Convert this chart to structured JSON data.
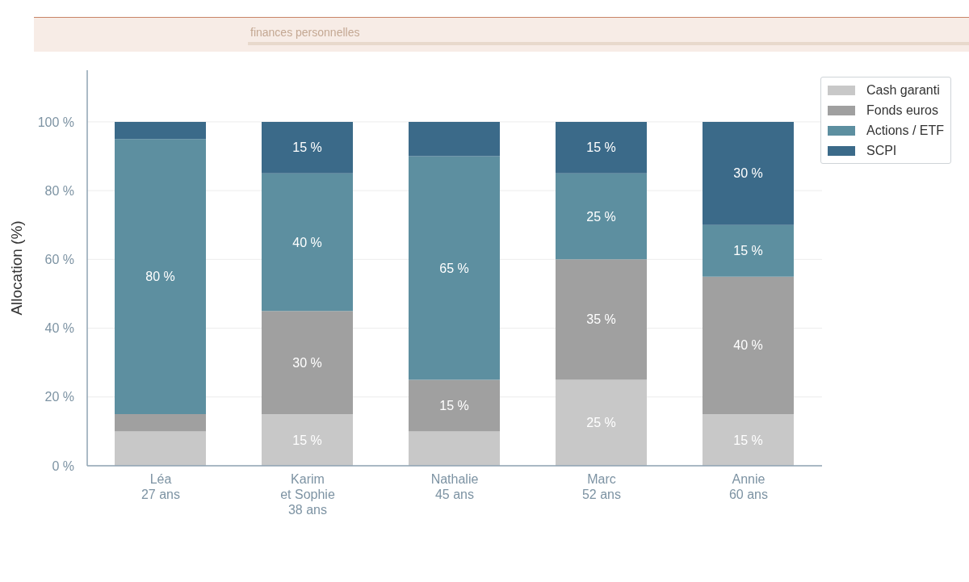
{
  "chart_data": {
    "type": "bar",
    "subtitle": "finances personnelles",
    "ylabel": "Allocation (%)",
    "categories": [
      "Léa\n27 ans",
      "Karim\net Sophie\n38 ans",
      "Nathalie\n45 ans",
      "Marc\n52 ans",
      "Annie\n60 ans"
    ],
    "stacked": true,
    "series": [
      {
        "name": "Cash garanti",
        "color": "#c8c8c8",
        "values": [
          10,
          15,
          10,
          25,
          15
        ],
        "value_labels": [
          null,
          "15 %",
          null,
          "25 %",
          "15 %"
        ]
      },
      {
        "name": "Fonds euros",
        "color": "#a0a0a0",
        "values": [
          5,
          30,
          15,
          35,
          40
        ],
        "value_labels": [
          null,
          "30 %",
          "15 %",
          "35 %",
          "40 %"
        ]
      },
      {
        "name": "Actions / ETF",
        "color": "#5d8fa0",
        "values": [
          80,
          40,
          65,
          25,
          15
        ],
        "value_labels": [
          "80 %",
          "40 %",
          "65 %",
          "25 %",
          "15 %"
        ]
      },
      {
        "name": "SCPI",
        "color": "#3b6a89",
        "values": [
          5,
          15,
          10,
          15,
          30
        ],
        "value_labels": [
          null,
          "15 %",
          null,
          "15 %",
          "30 %"
        ]
      }
    ],
    "ylim": [
      0,
      115
    ],
    "yticks": [
      {
        "value": 0,
        "label": "0 %"
      },
      {
        "value": 20,
        "label": "20 %"
      },
      {
        "value": 40,
        "label": "40 %"
      },
      {
        "value": 60,
        "label": "60 %"
      },
      {
        "value": 80,
        "label": "80 %"
      },
      {
        "value": 100,
        "label": "100 %"
      }
    ],
    "grid": "y",
    "legend": "top right"
  }
}
